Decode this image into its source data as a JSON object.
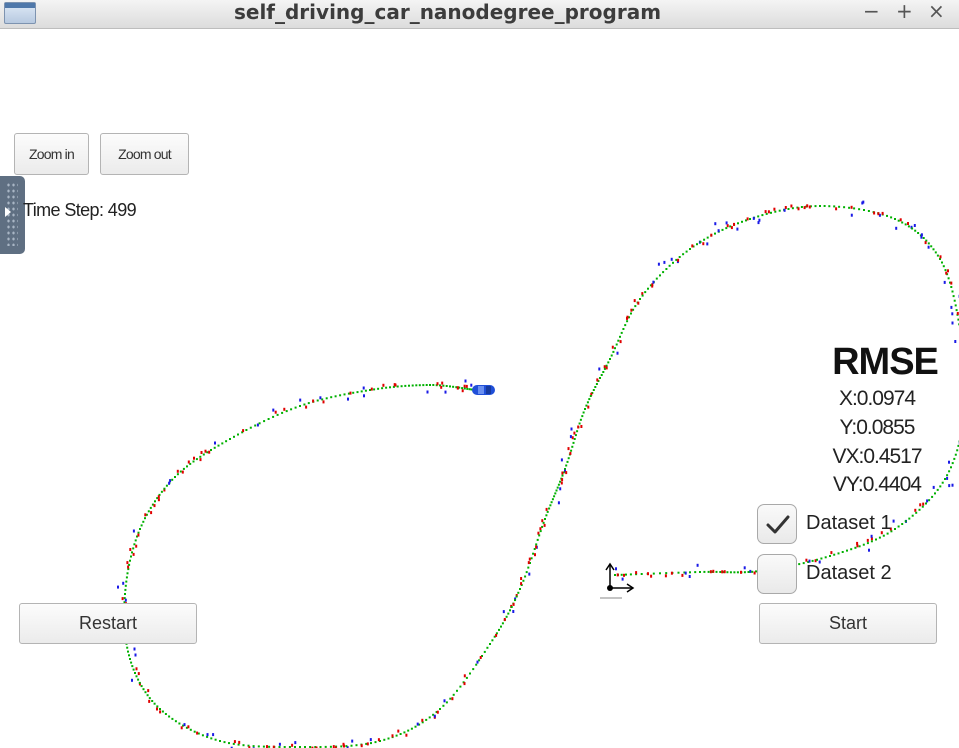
{
  "window": {
    "title": "self_driving_car_nanodegree_program",
    "controls": {
      "minimize": "−",
      "maximize": "+",
      "close": "×"
    }
  },
  "toolbar": {
    "zoom_in_label": "Zoom in",
    "zoom_out_label": "Zoom out"
  },
  "status": {
    "time_step_label": "Time Step:",
    "time_step_value": 499
  },
  "rmse": {
    "title": "RMSE",
    "rows": [
      {
        "label": "X:",
        "value": "0.0974"
      },
      {
        "label": "Y:",
        "value": "0.0855"
      },
      {
        "label": "VX:",
        "value": "0.4517"
      },
      {
        "label": "VY:",
        "value": "0.4404"
      }
    ]
  },
  "datasets": [
    {
      "label": "Dataset 1",
      "checked": true
    },
    {
      "label": "Dataset 2",
      "checked": false
    }
  ],
  "actions": {
    "restart_label": "Restart",
    "start_label": "Start"
  },
  "colors": {
    "accent": "#2f6fb0",
    "estimate_marker": "#00b000",
    "lidar_marker": "#e00000",
    "radar_marker": "#1a1ae6",
    "car": "#1f4fd8",
    "axis": "#000000"
  },
  "icons": {
    "side_panel": "panel-toggle-icon",
    "checkmark": "checkmark-icon",
    "car": "car-icon",
    "origin": "axes-icon"
  }
}
